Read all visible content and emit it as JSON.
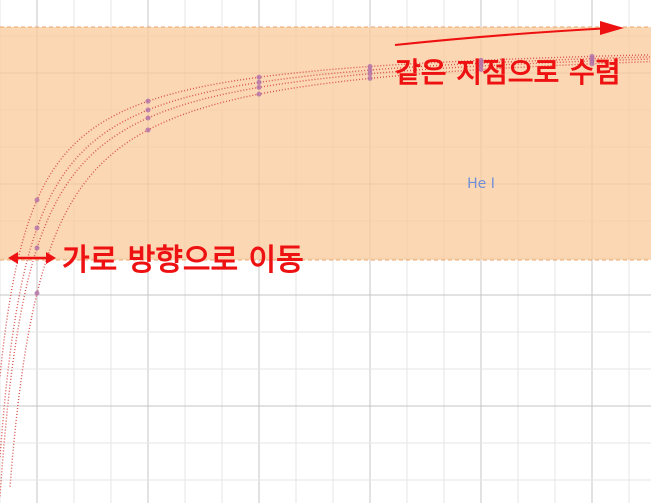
{
  "label": "He I",
  "annotations": [
    "가로 방향으로 이동",
    "같은 지점으로 수렴"
  ]
}
